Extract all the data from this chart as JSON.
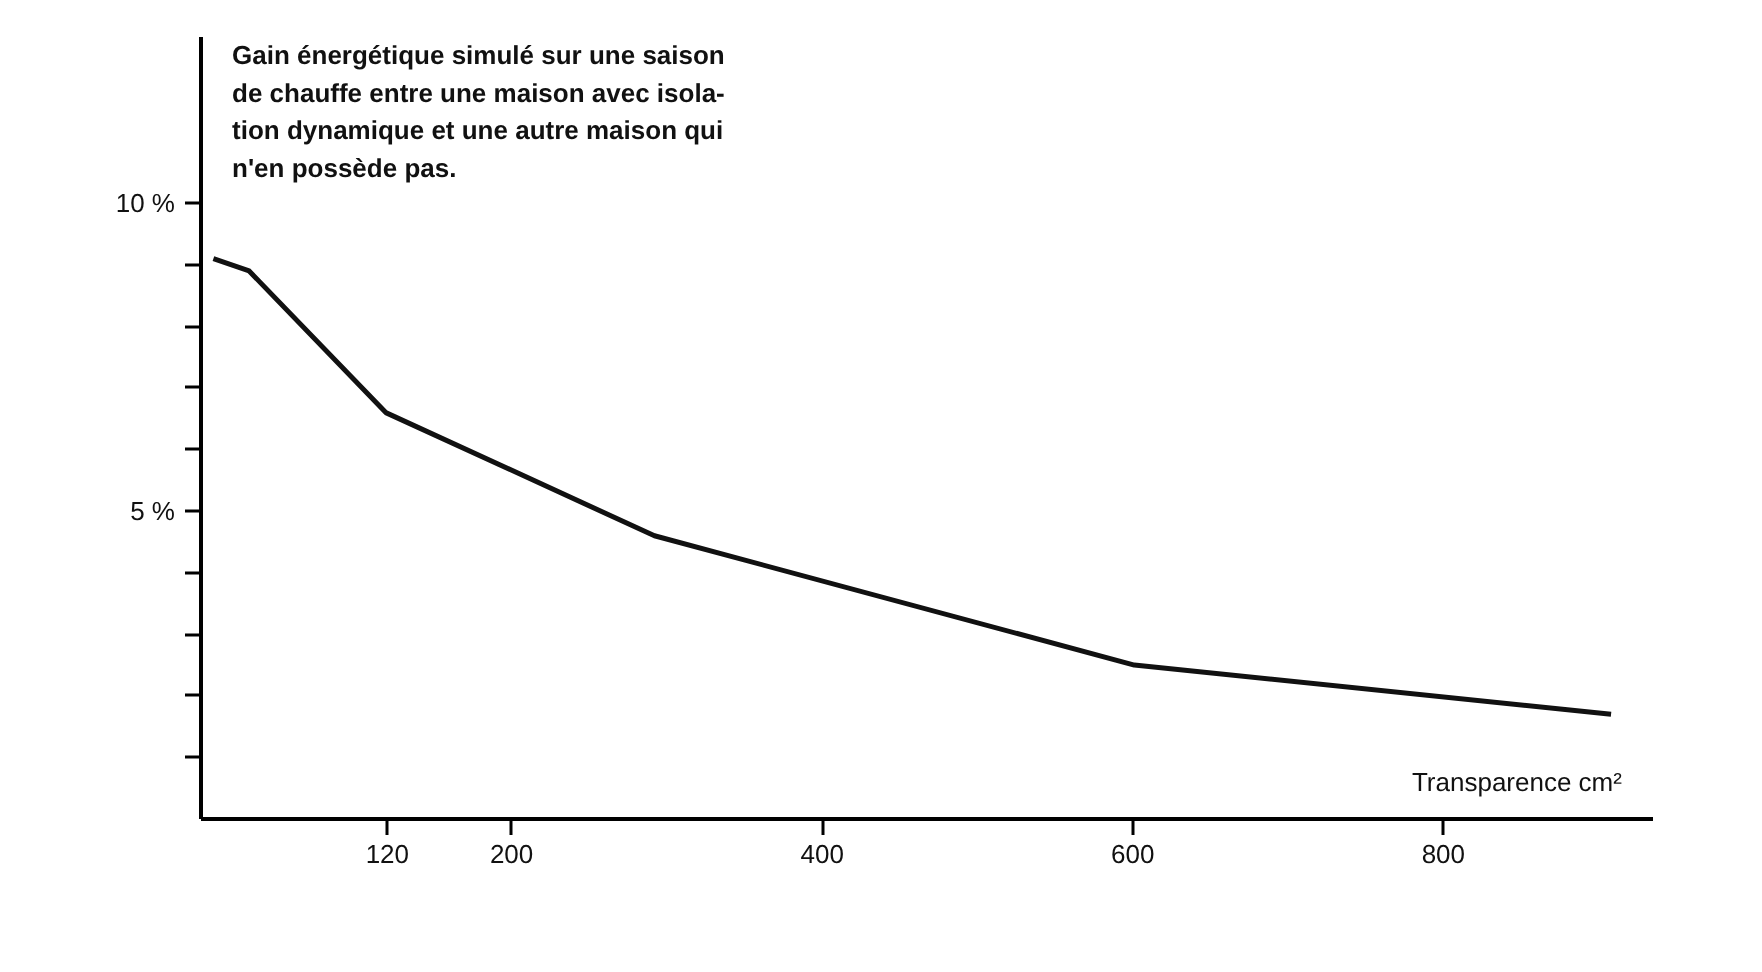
{
  "chart_data": {
    "type": "line",
    "title": "Gain énergétique simulé sur une saison\nde chauffe entre une maison avec isola-\ntion dynamique et une autre maison qui\nn'en possède pas.",
    "xlabel": "Transparence cm²",
    "x": [
      8,
      31,
      119,
      292,
      601,
      908
    ],
    "series": [
      {
        "color": "#111111",
        "values": [
          9.1,
          8.9,
          6.6,
          4.6,
          2.5,
          1.7
        ]
      }
    ],
    "xlim": [
      0,
      935
    ],
    "xticks": [
      120,
      200,
      400,
      600,
      800
    ],
    "ylim": [
      0,
      12.7
    ],
    "yticks": [
      {
        "value": 1,
        "label": null
      },
      {
        "value": 2,
        "label": null
      },
      {
        "value": 3,
        "label": null
      },
      {
        "value": 4,
        "label": null
      },
      {
        "value": 5,
        "label": "5 %"
      },
      {
        "value": 6,
        "label": null
      },
      {
        "value": 7,
        "label": null
      },
      {
        "value": 8,
        "label": null
      },
      {
        "value": 9,
        "label": null
      },
      {
        "value": 10,
        "label": "10 %"
      }
    ],
    "grid": false,
    "marker": "none",
    "line_style": "solid"
  }
}
